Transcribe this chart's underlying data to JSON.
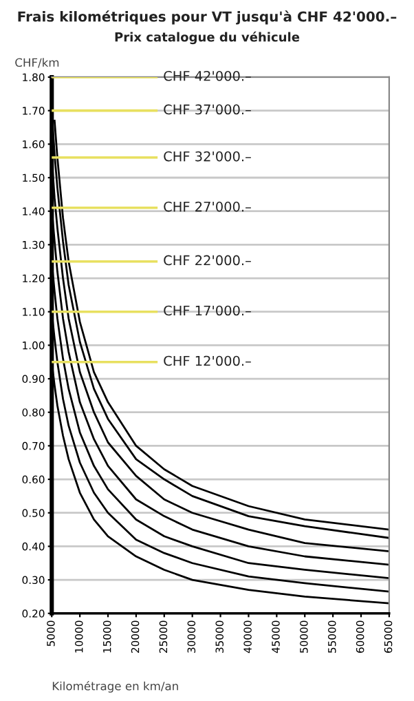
{
  "chart_data": {
    "type": "line",
    "title": "Frais kilométriques pour VT jusqu'à CHF 42'000.–",
    "subtitle": "Prix catalogue du véhicule",
    "ylabel": "CHF/km",
    "xlabel": "Kilométrage en km/an",
    "x": [
      5000,
      5500,
      6000,
      7000,
      8000,
      10000,
      12500,
      15000,
      20000,
      25000,
      30000,
      40000,
      50000,
      65000
    ],
    "series": [
      {
        "color": "#000000",
        "values": [
          null,
          1.67,
          1.56,
          1.38,
          1.25,
          1.07,
          0.92,
          0.83,
          0.7,
          0.63,
          0.58,
          0.52,
          0.48,
          0.45
        ]
      },
      {
        "color": "#000000",
        "values": [
          1.7,
          1.57,
          1.47,
          1.31,
          1.18,
          1.01,
          0.87,
          0.78,
          0.66,
          0.6,
          0.55,
          0.49,
          0.46,
          0.425
        ]
      },
      {
        "color": "#000000",
        "values": [
          1.56,
          1.44,
          1.35,
          1.2,
          1.08,
          0.92,
          0.8,
          0.71,
          0.61,
          0.54,
          0.5,
          0.45,
          0.41,
          0.385
        ]
      },
      {
        "color": "#000000",
        "values": [
          1.41,
          1.31,
          1.22,
          1.08,
          0.98,
          0.83,
          0.72,
          0.64,
          0.54,
          0.49,
          0.45,
          0.4,
          0.37,
          0.345
        ]
      },
      {
        "color": "#000000",
        "values": [
          1.25,
          1.16,
          1.08,
          0.96,
          0.87,
          0.74,
          0.64,
          0.57,
          0.48,
          0.43,
          0.4,
          0.35,
          0.33,
          0.305
        ]
      },
      {
        "color": "#000000",
        "values": [
          1.1,
          1.02,
          0.95,
          0.84,
          0.76,
          0.65,
          0.56,
          0.5,
          0.42,
          0.38,
          0.35,
          0.31,
          0.29,
          0.265
        ]
      },
      {
        "color": "#000000",
        "values": [
          0.95,
          0.88,
          0.82,
          0.73,
          0.66,
          0.56,
          0.48,
          0.43,
          0.37,
          0.33,
          0.3,
          0.27,
          0.25,
          0.23
        ]
      }
    ],
    "ref_lines": [
      {
        "axis": "y",
        "value": 1.8,
        "label": "CHF 42'000.–",
        "color": "#e8e060"
      },
      {
        "axis": "y",
        "value": 1.7,
        "label": "CHF 37'000.–",
        "color": "#e8e060"
      },
      {
        "axis": "y",
        "value": 1.56,
        "label": "CHF 32'000.–",
        "color": "#e8e060"
      },
      {
        "axis": "y",
        "value": 1.41,
        "label": "CHF 27'000.–",
        "color": "#e8e060"
      },
      {
        "axis": "y",
        "value": 1.25,
        "label": "CHF 22'000.–",
        "color": "#e8e060"
      },
      {
        "axis": "y",
        "value": 1.1,
        "label": "CHF 17'000.–",
        "color": "#e8e060"
      },
      {
        "axis": "y",
        "value": 0.95,
        "label": "CHF 12'000.–",
        "color": "#e8e060"
      }
    ],
    "xlim": [
      5000,
      65000
    ],
    "xticks": [
      5000,
      10000,
      15000,
      20000,
      25000,
      30000,
      35000,
      40000,
      45000,
      50000,
      55000,
      60000,
      65000
    ],
    "ylim": [
      0.2,
      1.8
    ],
    "yticks": [
      {
        "value": 0.2,
        "label": "0.20"
      },
      {
        "value": 0.3,
        "label": "0.30"
      },
      {
        "value": 0.4,
        "label": "0.40"
      },
      {
        "value": 0.5,
        "label": "0.50"
      },
      {
        "value": 0.6,
        "label": "0.60"
      },
      {
        "value": 0.7,
        "label": "0.70"
      },
      {
        "value": 0.8,
        "label": "0.80"
      },
      {
        "value": 0.9,
        "label": "0.90"
      },
      {
        "value": 1.0,
        "label": "1.00"
      },
      {
        "value": 1.1,
        "label": "1.10"
      },
      {
        "value": 1.2,
        "label": "1.20"
      },
      {
        "value": 1.3,
        "label": "1.30"
      },
      {
        "value": 1.4,
        "label": "1.40"
      },
      {
        "value": 1.5,
        "label": "1.50"
      },
      {
        "value": 1.6,
        "label": "1.60"
      },
      {
        "value": 1.7,
        "label": "1.70"
      },
      {
        "value": 1.8,
        "label": "1.80"
      }
    ],
    "grid": "y",
    "marker": "none",
    "line_style": "solid"
  }
}
